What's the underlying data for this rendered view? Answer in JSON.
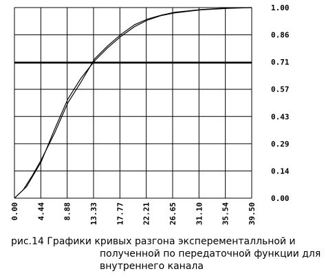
{
  "chart_data": {
    "type": "line",
    "title": "",
    "xlabel": "",
    "ylabel": "",
    "xlim": [
      0,
      39.5
    ],
    "ylim": [
      0,
      1.0
    ],
    "grid": true,
    "x_ticks": [
      "0.00",
      "4.44",
      "8.88",
      "13.33",
      "17.77",
      "22.21",
      "26.65",
      "31.10",
      "35.54",
      "39.50"
    ],
    "y_ticks": [
      "0.00",
      "0.14",
      "0.29",
      "0.43",
      "0.57",
      "0.71",
      "0.86",
      "1.00"
    ],
    "reference_line_y": 0.71,
    "series": [
      {
        "x": [
          0,
          1.5,
          3.0,
          4.44,
          6.66,
          8.88,
          11.1,
          13.33,
          15.55,
          17.77,
          19.99,
          22.21,
          24.43,
          26.65,
          31.1,
          35.54,
          39.5
        ],
        "y": [
          0,
          0.045,
          0.12,
          0.2,
          0.34,
          0.5,
          0.61,
          0.73,
          0.8,
          0.86,
          0.91,
          0.94,
          0.96,
          0.975,
          0.99,
          0.998,
          1.0
        ]
      },
      {
        "x": [
          0,
          2.0,
          4.44,
          6.66,
          8.88,
          11.1,
          13.33,
          15.55,
          17.77,
          19.99,
          22.21,
          24.43,
          26.65,
          31.1,
          35.54,
          39.5
        ],
        "y": [
          0,
          0.06,
          0.19,
          0.36,
          0.52,
          0.63,
          0.72,
          0.79,
          0.85,
          0.9,
          0.935,
          0.958,
          0.972,
          0.988,
          0.996,
          1.0
        ]
      }
    ]
  },
  "caption": {
    "line1": "рис.14  Графики кривых разгона эксперементалльной и",
    "line2": "полученной по передаточной функции для",
    "line3": "внутреннего канала"
  },
  "colors": {
    "axis": "#000000",
    "curve": "#000000",
    "background": "#ffffff"
  }
}
